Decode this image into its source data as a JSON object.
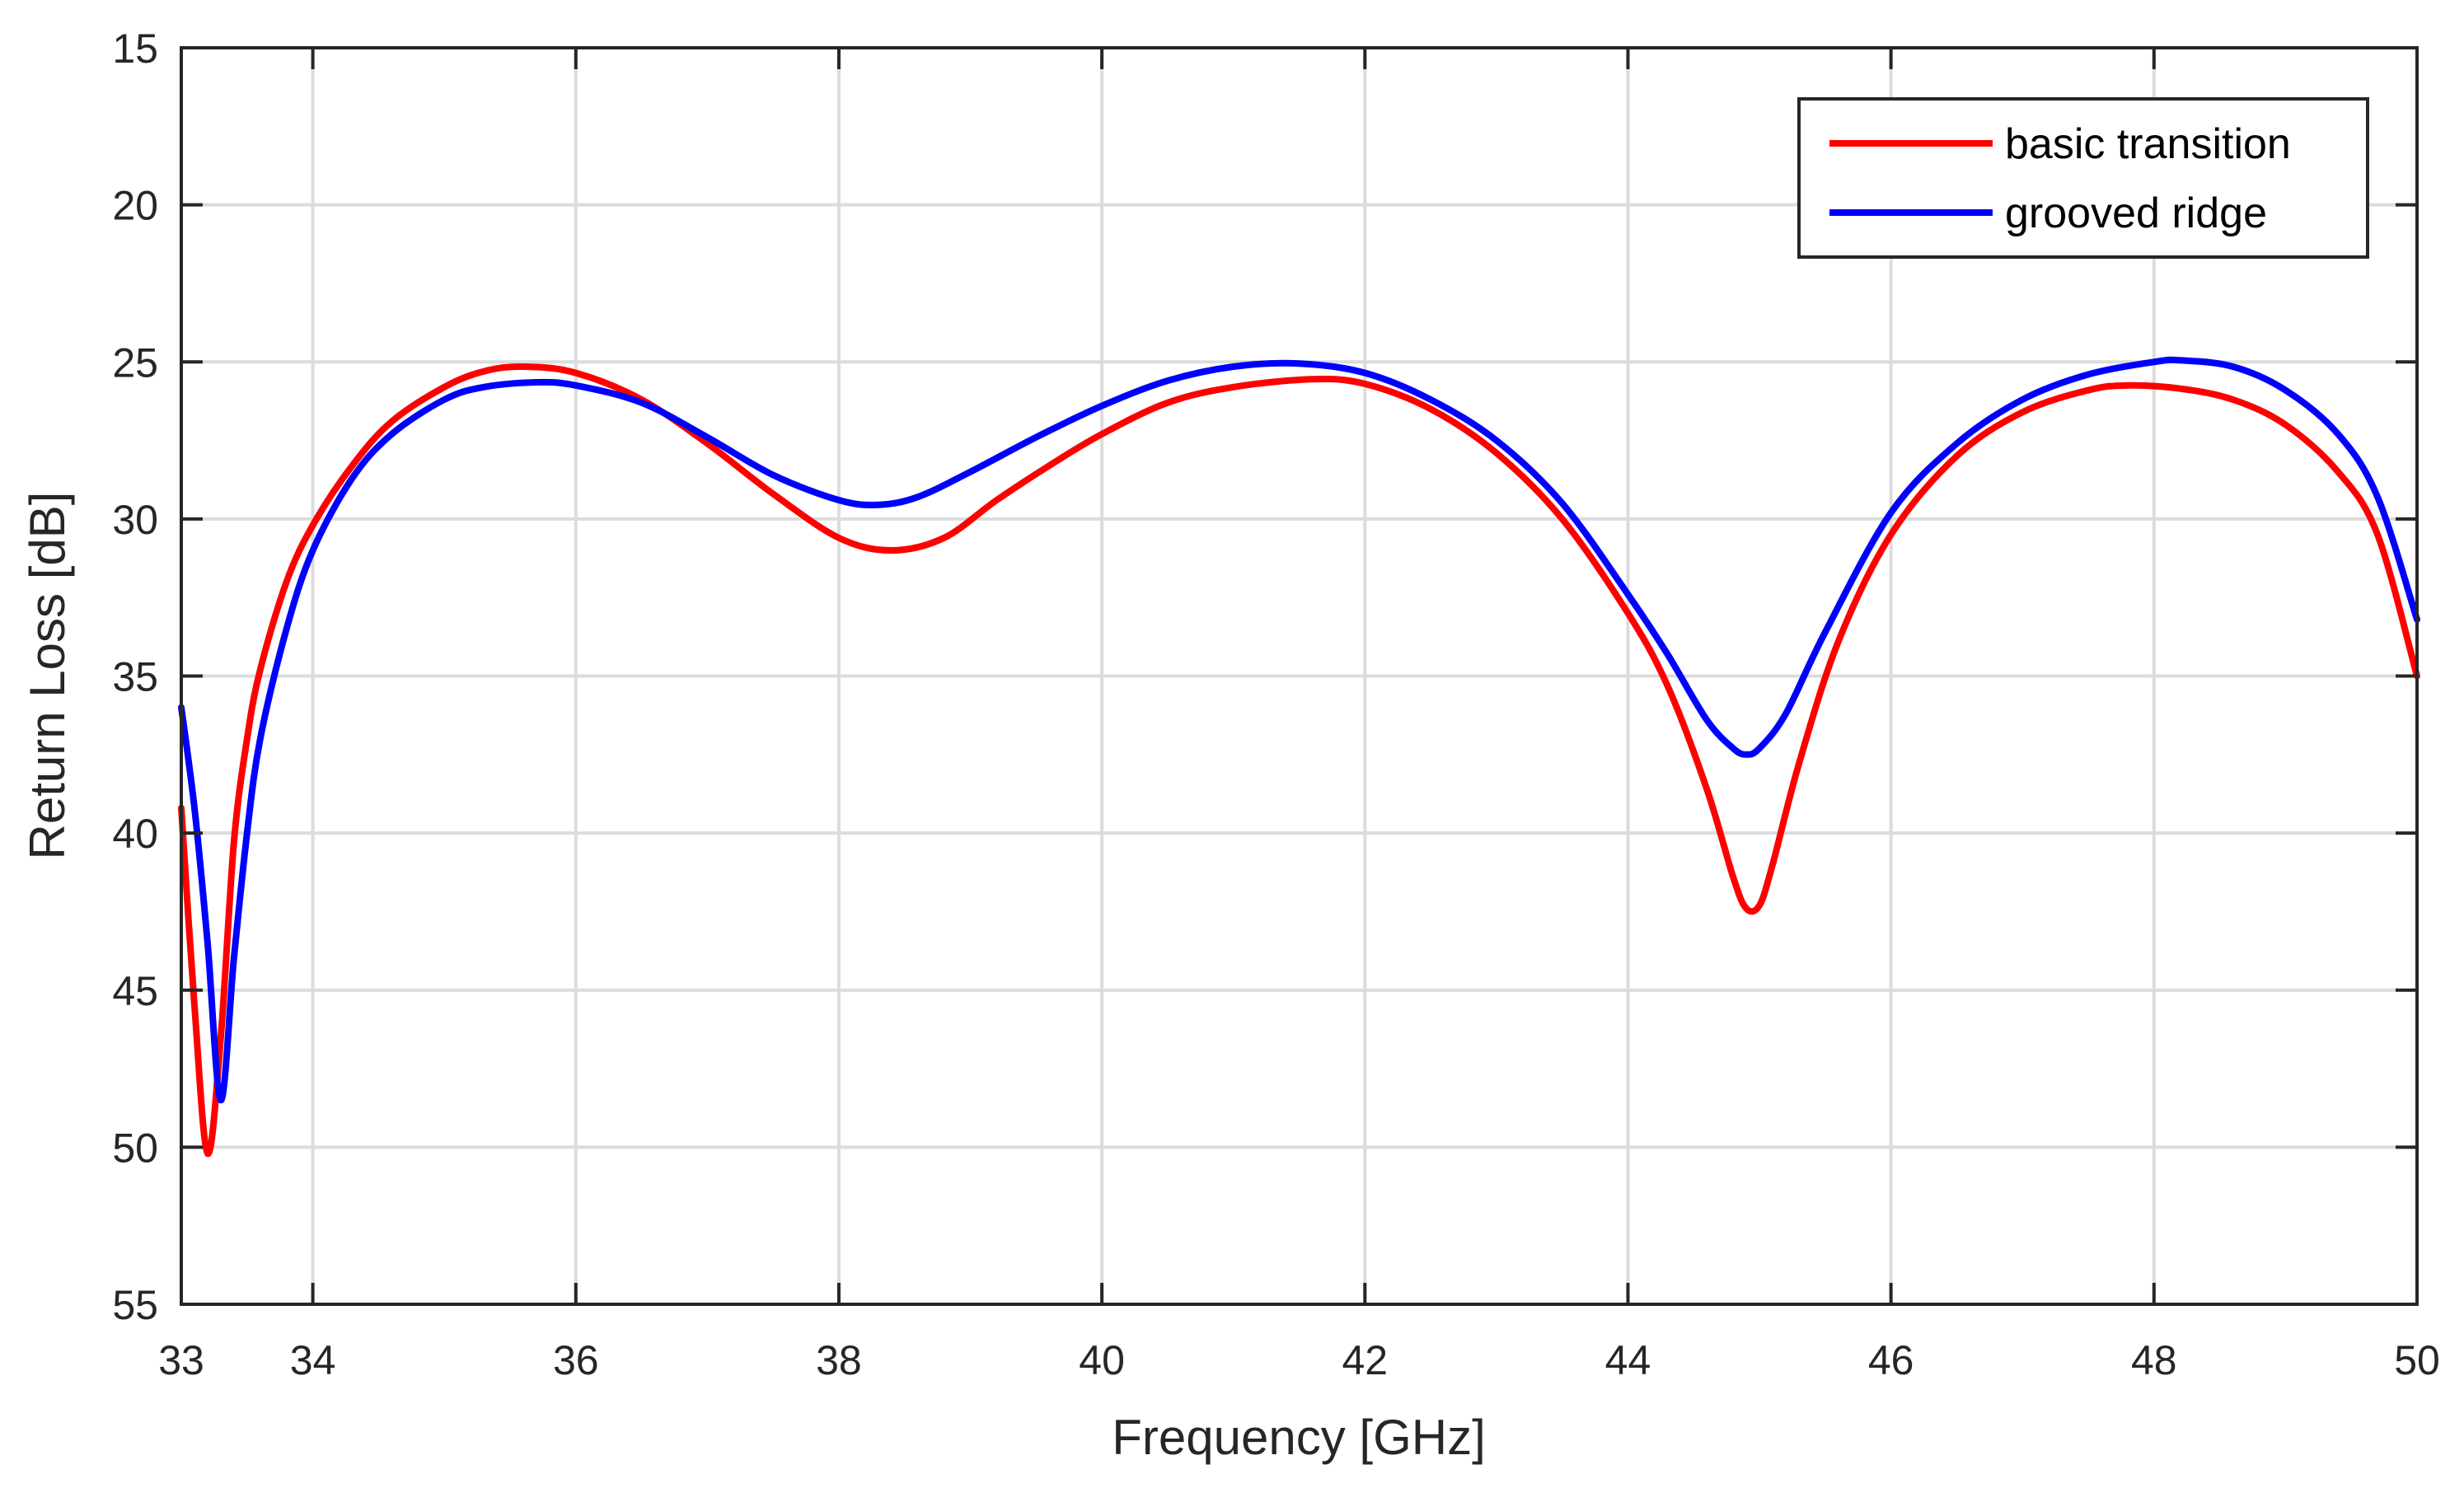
{
  "chart_data": {
    "type": "line",
    "title": "",
    "xlabel": "Frequency [GHz]",
    "ylabel": "Return Loss [dB]",
    "xlim": [
      33,
      50
    ],
    "ylim": [
      15,
      55
    ],
    "y_reversed": true,
    "grid": true,
    "legend_position": "top-right",
    "xticks": [
      33,
      34,
      36,
      38,
      40,
      42,
      44,
      46,
      48,
      50
    ],
    "xtick_labels": [
      "33",
      "34",
      "36",
      "38",
      "40",
      "42",
      "44",
      "46",
      "48",
      "50"
    ],
    "yticks": [
      15,
      20,
      25,
      30,
      35,
      40,
      45,
      50,
      55
    ],
    "ytick_labels": [
      "15",
      "20",
      "25",
      "30",
      "35",
      "40",
      "45",
      "50",
      "55"
    ],
    "series": [
      {
        "name": "basic transition",
        "color": "#ff0000",
        "x": [
          33.0,
          33.1,
          33.2,
          33.3,
          33.4,
          33.5,
          33.6,
          33.8,
          34.0,
          34.3,
          34.6,
          35.0,
          35.3,
          35.6,
          36.0,
          36.5,
          37.0,
          37.5,
          38.0,
          38.4,
          38.8,
          39.2,
          39.6,
          40.0,
          40.5,
          41.0,
          41.6,
          42.0,
          42.5,
          43.0,
          43.5,
          44.0,
          44.3,
          44.6,
          44.8,
          44.9,
          45.0,
          45.1,
          45.3,
          45.6,
          46.0,
          46.5,
          47.0,
          47.5,
          47.8,
          48.2,
          48.6,
          49.0,
          49.4,
          49.7,
          50.0
        ],
        "y": [
          39.2,
          45.5,
          50.2,
          46.5,
          40.3,
          37.0,
          34.8,
          32.0,
          30.2,
          28.3,
          26.9,
          25.8,
          25.3,
          25.15,
          25.35,
          26.2,
          27.6,
          29.2,
          30.6,
          31.0,
          30.6,
          29.4,
          28.3,
          27.3,
          26.3,
          25.8,
          25.55,
          25.7,
          26.5,
          27.9,
          30.0,
          33.0,
          35.3,
          38.6,
          41.4,
          42.4,
          42.3,
          41.0,
          37.8,
          33.9,
          30.5,
          28.0,
          26.6,
          25.9,
          25.75,
          25.85,
          26.2,
          27.0,
          28.5,
          30.5,
          35.0
        ]
      },
      {
        "name": "grooved ridge",
        "color": "#0000ff",
        "x": [
          33.0,
          33.1,
          33.2,
          33.3,
          33.4,
          33.5,
          33.6,
          33.8,
          34.0,
          34.3,
          34.6,
          35.0,
          35.3,
          35.7,
          36.0,
          36.5,
          37.0,
          37.5,
          38.0,
          38.3,
          38.6,
          39.0,
          39.5,
          40.0,
          40.5,
          41.0,
          41.5,
          42.0,
          42.5,
          43.0,
          43.5,
          44.0,
          44.3,
          44.6,
          44.8,
          44.9,
          45.0,
          45.2,
          45.5,
          46.0,
          46.5,
          47.0,
          47.5,
          48.0,
          48.2,
          48.6,
          49.0,
          49.4,
          49.7,
          50.0
        ],
        "y": [
          36.0,
          39.2,
          43.5,
          48.5,
          44.0,
          40.0,
          37.0,
          33.5,
          31.0,
          28.7,
          27.3,
          26.2,
          25.8,
          25.65,
          25.75,
          26.3,
          27.4,
          28.6,
          29.4,
          29.55,
          29.3,
          28.5,
          27.4,
          26.4,
          25.6,
          25.15,
          25.05,
          25.35,
          26.2,
          27.5,
          29.5,
          32.4,
          34.3,
          36.4,
          37.3,
          37.5,
          37.3,
          36.2,
          33.6,
          29.8,
          27.6,
          26.2,
          25.4,
          25.0,
          24.95,
          25.15,
          25.9,
          27.3,
          29.3,
          33.2
        ]
      }
    ]
  }
}
